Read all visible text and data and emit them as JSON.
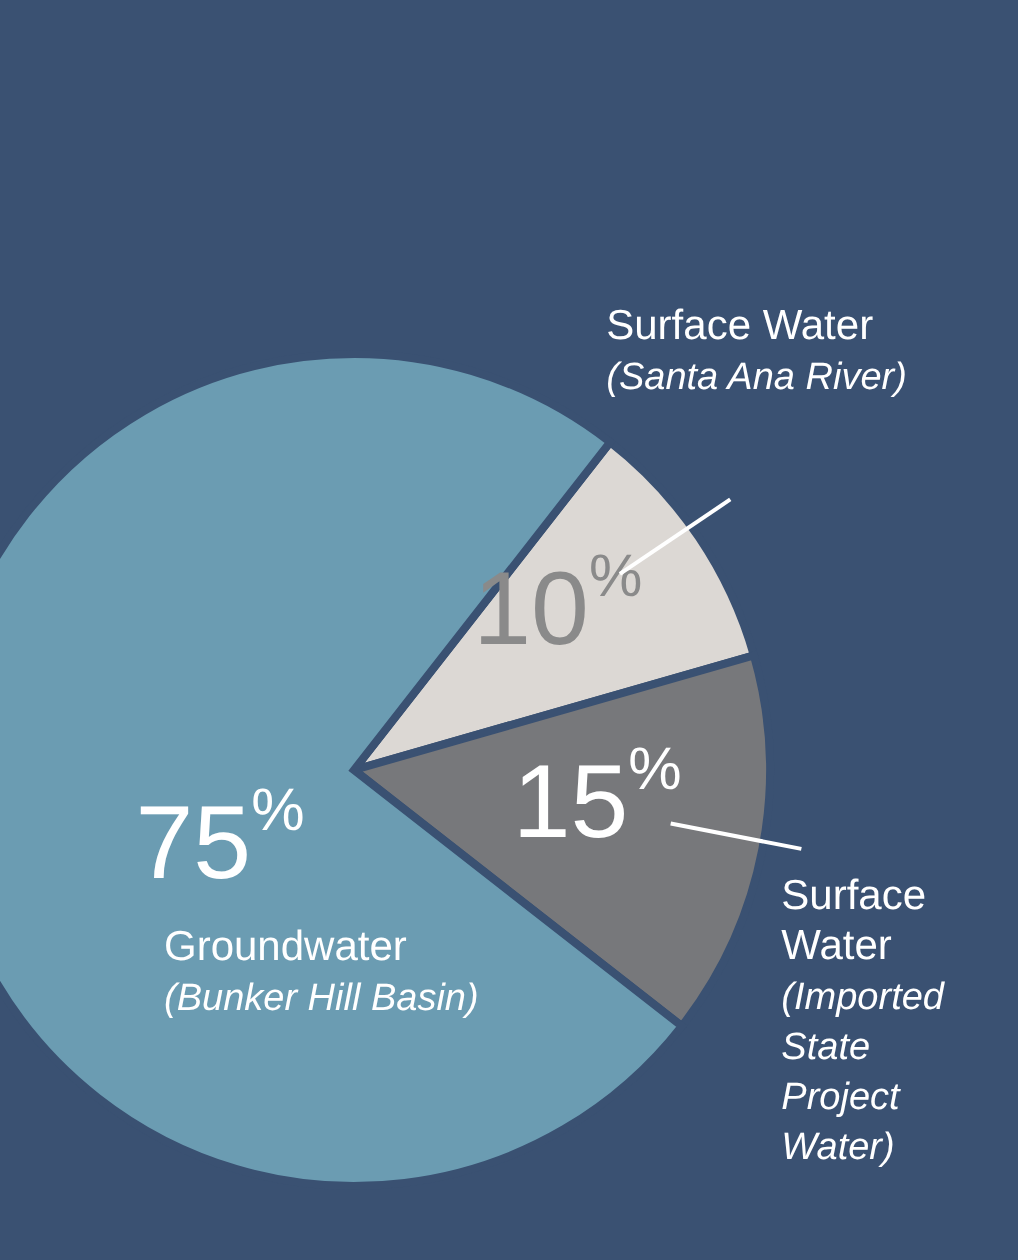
{
  "chart_data": {
    "type": "pie",
    "categories": [
      "Surface Water (Santa Ana River)",
      "Surface Water (Imported State Project Water)",
      "Groundwater (Bunker Hill Basin)"
    ],
    "values": [
      10,
      15,
      75
    ],
    "value_labels": [
      "10$^{%}$",
      "15$^{%}$",
      "75$^{%}$"
    ],
    "colors": [
      "#dcd8d4",
      "#77787b",
      "#6b9cb2"
    ]
  }
}
